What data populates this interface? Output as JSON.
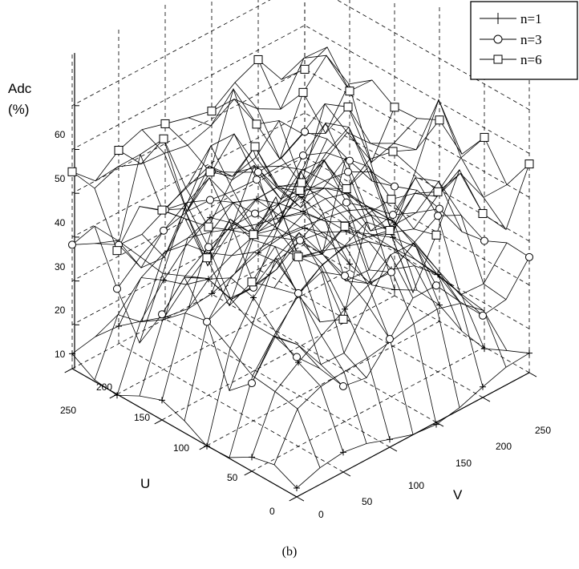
{
  "chart_data": {
    "type": "surface3d",
    "caption": "(b)",
    "zlabel_line1": "Adc",
    "zlabel_line2": "(%)",
    "xlabel": "U",
    "ylabel": "V",
    "u_ticks": [
      "0",
      "50",
      "100",
      "150",
      "200",
      "250"
    ],
    "v_ticks": [
      "0",
      "50",
      "100",
      "150",
      "200",
      "250"
    ],
    "z_ticks": [
      "10",
      "20",
      "30",
      "40",
      "50",
      "60"
    ],
    "zlim": [
      0,
      70
    ],
    "grid": "dashed",
    "legend_position": "top-right",
    "u_values": [
      0,
      25,
      50,
      75,
      100,
      125,
      150,
      175,
      200,
      225,
      250
    ],
    "v_values": [
      0,
      25,
      50,
      75,
      100,
      125,
      150,
      175,
      200,
      225,
      250
    ],
    "series": [
      {
        "name": "n=1",
        "marker": "plus"
      },
      {
        "name": "n=3",
        "marker": "circle"
      },
      {
        "name": "n=6",
        "marker": "square"
      }
    ]
  }
}
